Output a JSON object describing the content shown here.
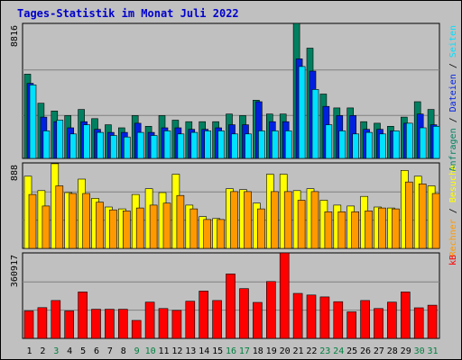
{
  "chart_data": {
    "type": "bar",
    "title": "Tages-Statistik im Monat Juli 2022",
    "categories": [
      "1",
      "2",
      "3",
      "4",
      "5",
      "6",
      "7",
      "8",
      "9",
      "10",
      "11",
      "12",
      "13",
      "14",
      "15",
      "16",
      "17",
      "18",
      "19",
      "20",
      "21",
      "22",
      "23",
      "24",
      "25",
      "26",
      "27",
      "28",
      "29",
      "30",
      "31"
    ],
    "weekend_days": [
      "3",
      "9",
      "10",
      "16",
      "17",
      "23",
      "24",
      "30",
      "31"
    ],
    "colors": {
      "background": "#c0c0c0",
      "title": "#0000cc",
      "anfragen": "#008060",
      "dateien": "#0020e0",
      "seiten": "#00e0ff",
      "besuche": "#ffff00",
      "rechner": "#ff9900",
      "kb": "#ff0000",
      "weekend_label": "#008040",
      "weekday_label": "#000000"
    },
    "panels": [
      {
        "id": "requests",
        "ymax_label": "8816",
        "ymax": 8816,
        "legend": [
          {
            "label": "Anfragen",
            "color": "#008060"
          },
          {
            "label": "Dateien",
            "color": "#0020e0"
          },
          {
            "label": "Seiten",
            "color": "#00e0ff"
          }
        ],
        "series": [
          {
            "name": "Anfragen",
            "color": "#008060",
            "values": [
              5500,
              3600,
              3100,
              2800,
              3200,
              2600,
              2200,
              2000,
              2800,
              2100,
              2800,
              2500,
              2400,
              2400,
              2400,
              2900,
              2800,
              3800,
              2900,
              2900,
              8816,
              7200,
              4200,
              3300,
              3300,
              2400,
              2300,
              2100,
              2700,
              3700,
              3200
            ]
          },
          {
            "name": "Dateien",
            "color": "#0020e0",
            "values": [
              4900,
              2700,
              2400,
              2000,
              2400,
              1900,
              1700,
              1700,
              2300,
              1700,
              2000,
              2000,
              1900,
              1900,
              2000,
              2200,
              2200,
              3700,
              2400,
              2400,
              6500,
              5700,
              3400,
              2800,
              2800,
              1900,
              1900,
              1800,
              2300,
              2900,
              2200
            ]
          },
          {
            "name": "Seiten",
            "color": "#00e0ff",
            "values": [
              4800,
              1800,
              2500,
              1600,
              2200,
              1700,
              1500,
              1400,
              1700,
              1500,
              1800,
              1600,
              1700,
              1800,
              1800,
              1600,
              1600,
              1800,
              1800,
              1800,
              6000,
              4500,
              2200,
              1800,
              1600,
              1700,
              1600,
              1800,
              2300,
              2000,
              2100
            ]
          }
        ]
      },
      {
        "id": "visits",
        "ymax_label": "888",
        "ymax": 888,
        "legend": [
          {
            "label": "Rechner",
            "color": "#ff9900"
          },
          {
            "label": "Besuche",
            "color": "#ffff00"
          }
        ],
        "series": [
          {
            "name": "Besuche",
            "color": "#ffff00",
            "values": [
              750,
              600,
              880,
              580,
              720,
              520,
              430,
              410,
              560,
              620,
              580,
              770,
              450,
              330,
              310,
              620,
              610,
              470,
              770,
              770,
              600,
              620,
              500,
              450,
              440,
              540,
              430,
              420,
              810,
              750,
              650
            ]
          },
          {
            "name": "Rechner",
            "color": "#ff9900",
            "values": [
              560,
              440,
              650,
              570,
              570,
              480,
              400,
              390,
              420,
              450,
              470,
              550,
              410,
              300,
              300,
              590,
              590,
              410,
              590,
              590,
              500,
              590,
              380,
              380,
              380,
              390,
              420,
              410,
              690,
              670,
              570
            ]
          }
        ]
      },
      {
        "id": "kb",
        "ymax_label": "360917",
        "ymax": 360917,
        "legend": [
          {
            "label": "kB",
            "color": "#ff0000"
          }
        ],
        "series": [
          {
            "name": "kB",
            "color": "#ff0000",
            "values": [
              116000,
              130000,
              160000,
              116000,
              196000,
              123000,
              123000,
              123000,
              76000,
              153000,
              126000,
              118000,
              157000,
              200000,
              160000,
              272000,
              210000,
              152000,
              240000,
              360917,
              190000,
              183000,
              175000,
              155000,
              112000,
              160000,
              126000,
              153000,
              196000,
              129000,
              140000
            ]
          }
        ]
      }
    ]
  }
}
